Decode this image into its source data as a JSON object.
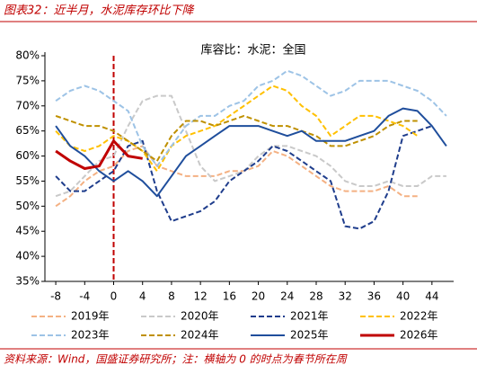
{
  "title": "图表32：近半月，水泥库存环比下降",
  "footer": "资料来源：Wind，国盛证券研究所；注：横轴为 0 的时点为春节所在周",
  "chart_data": {
    "type": "line",
    "title": "库容比：水泥：全国",
    "x": [
      -8,
      -6,
      -4,
      -2,
      0,
      2,
      4,
      6,
      8,
      10,
      12,
      14,
      16,
      18,
      20,
      22,
      24,
      26,
      28,
      30,
      32,
      34,
      36,
      38,
      40,
      42,
      44,
      46
    ],
    "xlim": [
      -9.5,
      47
    ],
    "xticks": [
      -8,
      -4,
      0,
      4,
      8,
      12,
      16,
      20,
      24,
      28,
      32,
      36,
      40,
      44
    ],
    "ylim": [
      35,
      80
    ],
    "yticks": [
      {
        "value": 35,
        "label": "35%"
      },
      {
        "value": 40,
        "label": "40%"
      },
      {
        "value": 45,
        "label": "45%"
      },
      {
        "value": 50,
        "label": "50%"
      },
      {
        "value": 55,
        "label": "55%"
      },
      {
        "value": 60,
        "label": "60%"
      },
      {
        "value": 65,
        "label": "65%"
      },
      {
        "value": 70,
        "label": "70%"
      },
      {
        "value": 75,
        "label": "75%"
      },
      {
        "value": 80,
        "label": "80%"
      }
    ],
    "grid": false,
    "vline": {
      "x": 0,
      "color": "#c00000"
    },
    "series": [
      {
        "name": "2019年",
        "color": "#f4b183",
        "dash": true,
        "line_width": 2,
        "values": [
          50,
          52,
          55,
          57,
          58,
          61,
          62,
          58,
          57,
          56,
          56,
          56,
          57,
          57,
          58,
          61,
          60,
          58,
          56,
          54,
          53,
          53,
          53,
          54,
          52,
          52,
          null,
          null
        ]
      },
      {
        "name": "2020年",
        "color": "#c9c9c9",
        "dash": true,
        "line_width": 2,
        "values": [
          52,
          53,
          56,
          59,
          60,
          66,
          71,
          72,
          72,
          65,
          58,
          55,
          56,
          57,
          60,
          62,
          62,
          61,
          60,
          58,
          55,
          54,
          54,
          55,
          54,
          54,
          56,
          56
        ]
      },
      {
        "name": "2021年",
        "color": "#1f3d8c",
        "dash": true,
        "line_width": 2,
        "values": [
          56,
          53,
          53,
          55,
          57,
          62,
          63,
          53,
          47,
          48,
          49,
          51,
          55,
          57,
          59,
          62,
          61,
          59,
          57,
          55,
          46,
          45.5,
          47,
          53,
          64,
          65,
          66,
          null
        ]
      },
      {
        "name": "2022年",
        "color": "#ffc000",
        "dash": true,
        "line_width": 2,
        "values": [
          65,
          62,
          61,
          62,
          64,
          63,
          61,
          57,
          62,
          64,
          65,
          66,
          68,
          70,
          72,
          74,
          73,
          70,
          68,
          64,
          66,
          68,
          68,
          67,
          66,
          64,
          null,
          null
        ]
      },
      {
        "name": "2023年",
        "color": "#9dc3e6",
        "dash": true,
        "line_width": 2,
        "values": [
          71,
          73,
          74,
          73,
          71,
          69,
          62,
          58,
          62,
          66,
          68,
          68,
          70,
          71,
          74,
          75,
          77,
          76,
          74,
          72,
          73,
          75,
          75,
          75,
          74,
          73,
          71,
          68
        ]
      },
      {
        "name": "2024年",
        "color": "#bf9000",
        "dash": true,
        "line_width": 2,
        "values": [
          68,
          67,
          66,
          66,
          65,
          63,
          61,
          59,
          64,
          67,
          67,
          66,
          67,
          68,
          67,
          66,
          66,
          65,
          64,
          62,
          62,
          63,
          64,
          66,
          67,
          67,
          null,
          null
        ]
      },
      {
        "name": "2025年",
        "color": "#1f4e9c",
        "dash": false,
        "line_width": 2,
        "values": [
          66,
          62,
          60,
          57,
          55,
          57,
          55,
          52,
          56,
          60,
          62,
          64,
          66,
          66,
          66,
          65,
          64,
          65,
          63,
          63,
          63,
          64,
          65,
          68,
          69.5,
          69,
          66,
          62
        ]
      },
      {
        "name": "2026年",
        "color": "#c00000",
        "dash": false,
        "line_width": 3,
        "values": [
          61,
          59,
          57.5,
          58,
          63,
          60,
          59.5,
          null,
          null,
          null,
          null,
          null,
          null,
          null,
          null,
          null,
          null,
          null,
          null,
          null,
          null,
          null,
          null,
          null,
          null,
          null,
          null,
          null
        ]
      }
    ]
  }
}
